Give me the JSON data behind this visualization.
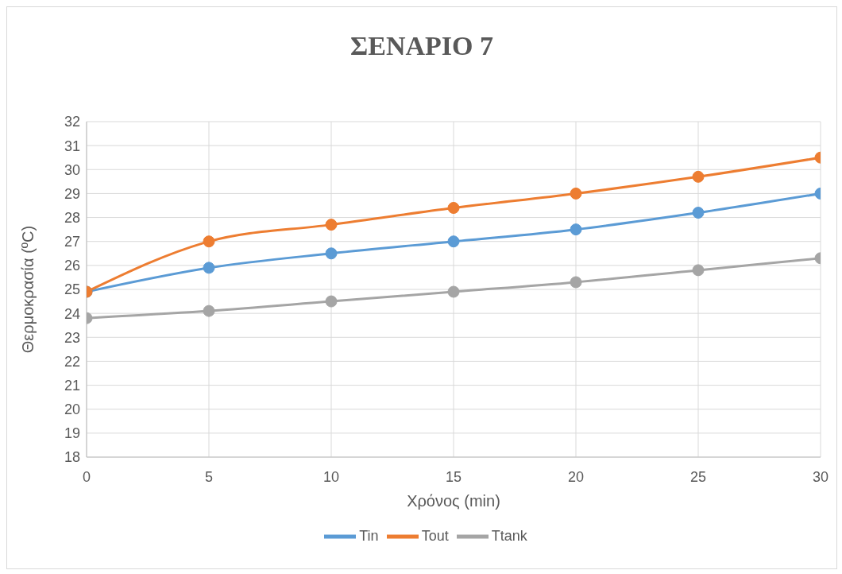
{
  "chart_data": {
    "type": "line",
    "title": "ΣΕΝΑΡΙΟ 7",
    "xlabel": "Χρόνος (min)",
    "ylabel": "Θερμοκρασία (ºC)",
    "x": [
      0,
      5,
      10,
      15,
      20,
      25,
      30
    ],
    "series": [
      {
        "name": "Tin",
        "color": "#5b9bd5",
        "values": [
          24.9,
          25.9,
          26.5,
          27.0,
          27.5,
          28.2,
          29.0
        ]
      },
      {
        "name": "Tout",
        "color": "#ed7d31",
        "values": [
          24.9,
          27.0,
          27.7,
          28.4,
          29.0,
          29.7,
          30.5
        ]
      },
      {
        "name": "Ttank",
        "color": "#a5a5a5",
        "values": [
          23.8,
          24.1,
          24.5,
          24.9,
          25.3,
          25.8,
          26.3
        ]
      }
    ],
    "xlim": [
      0,
      30
    ],
    "xticks": [
      0,
      5,
      10,
      15,
      20,
      25,
      30
    ],
    "ylim": [
      18,
      32
    ],
    "yticks": [
      18,
      19,
      20,
      21,
      22,
      23,
      24,
      25,
      26,
      27,
      28,
      29,
      30,
      31,
      32
    ],
    "grid": true,
    "legend": "bottom",
    "marker": "circle",
    "line_style": "solid"
  }
}
